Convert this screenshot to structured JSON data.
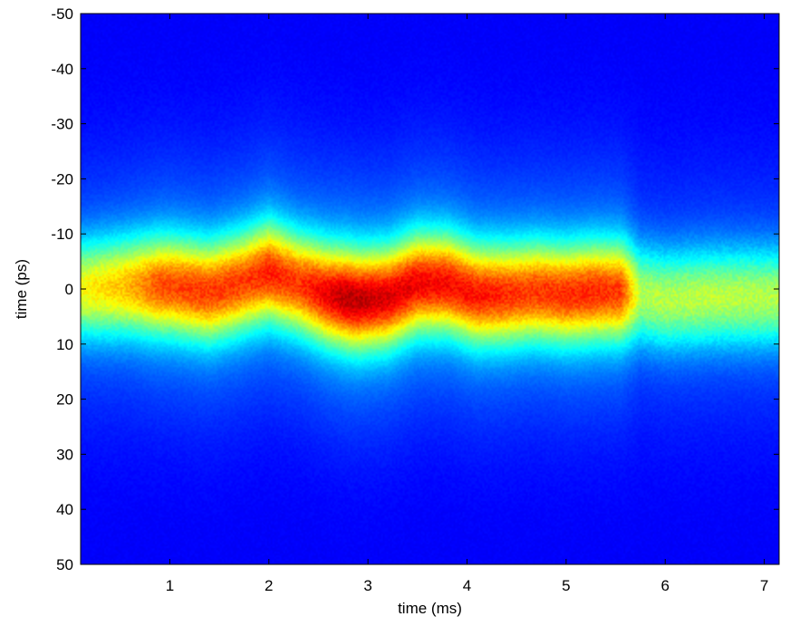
{
  "chart_data": {
    "type": "heatmap",
    "title": "",
    "xlabel": "time (ms)",
    "ylabel": "time (ps)",
    "xlim": [
      0.1,
      7.15
    ],
    "ylim": [
      -50,
      50
    ],
    "y_reversed": true,
    "x_ticks": [
      1,
      2,
      3,
      4,
      5,
      6,
      7
    ],
    "y_ticks": [
      -50,
      -40,
      -30,
      -20,
      -10,
      0,
      10,
      20,
      30,
      40,
      50
    ],
    "x_tick_labels": [
      "1",
      "2",
      "3",
      "4",
      "5",
      "6",
      "7"
    ],
    "y_tick_labels": [
      "-50",
      "-40",
      "-30",
      "-20",
      "-10",
      "0",
      "10",
      "20",
      "30",
      "40",
      "50"
    ],
    "colormap": "jet",
    "grid": false,
    "legend": "none",
    "background_color": "#00008f",
    "band_center_ps": [
      [
        0.1,
        0
      ],
      [
        0.6,
        -0.5
      ],
      [
        1.0,
        -0.5
      ],
      [
        1.4,
        0.5
      ],
      [
        1.7,
        -1.0
      ],
      [
        2.0,
        -3.0
      ],
      [
        2.3,
        -1.0
      ],
      [
        2.6,
        1.0
      ],
      [
        2.9,
        2.0
      ],
      [
        3.2,
        1.5
      ],
      [
        3.5,
        -1.0
      ],
      [
        3.8,
        -1.0
      ],
      [
        4.1,
        1.0
      ],
      [
        4.4,
        1.0
      ],
      [
        4.7,
        0.5
      ],
      [
        5.0,
        1.0
      ],
      [
        5.3,
        0.5
      ],
      [
        5.6,
        0.5
      ],
      [
        6.0,
        2.0
      ],
      [
        6.5,
        1.5
      ],
      [
        7.15,
        1.5
      ]
    ],
    "band_width_ps": 6,
    "band_peak_intensity": [
      [
        0.1,
        0.62
      ],
      [
        0.6,
        0.7
      ],
      [
        0.9,
        0.8
      ],
      [
        1.3,
        0.82
      ],
      [
        1.8,
        0.82
      ],
      [
        2.0,
        0.85
      ],
      [
        2.3,
        0.82
      ],
      [
        2.8,
        0.95
      ],
      [
        3.1,
        0.92
      ],
      [
        3.6,
        0.88
      ],
      [
        4.1,
        0.86
      ],
      [
        4.6,
        0.82
      ],
      [
        5.2,
        0.84
      ],
      [
        5.55,
        0.82
      ],
      [
        5.75,
        0.55
      ],
      [
        6.3,
        0.56
      ],
      [
        7.15,
        0.55
      ]
    ]
  }
}
